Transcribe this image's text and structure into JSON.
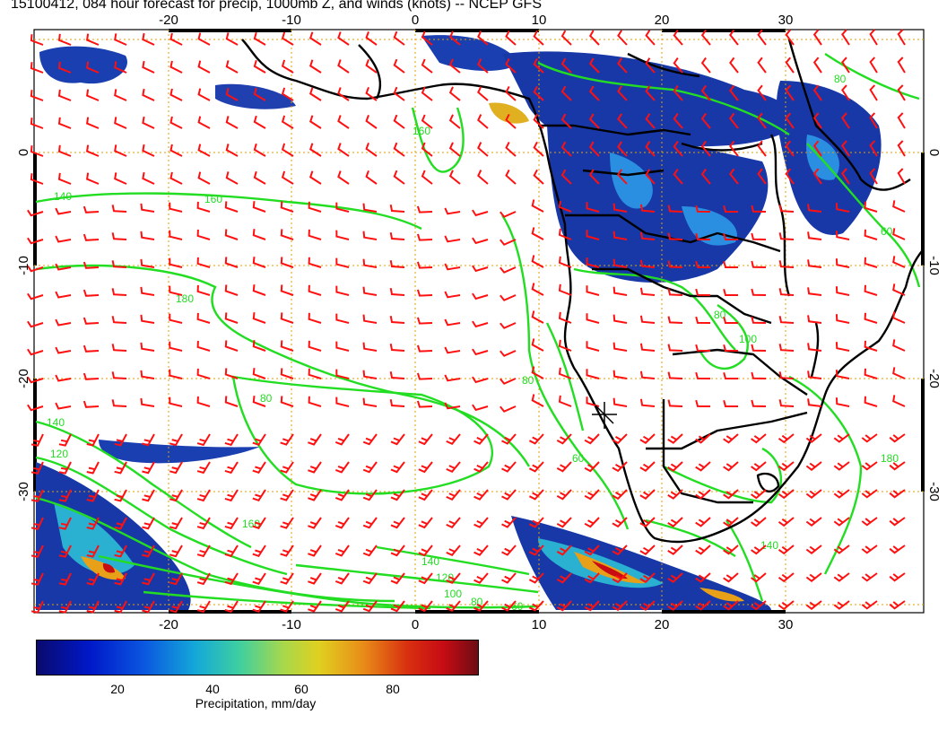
{
  "title": "15100412, 084 hour forecast for precip, 1000mb Z, and winds (knots) -- NCEP GFS",
  "map": {
    "lon_ticks": [
      "-20",
      "-10",
      "0",
      "10",
      "20",
      "30"
    ],
    "lat_ticks": [
      "0",
      "-10",
      "-20",
      "-30"
    ],
    "contour_labels": [
      "140",
      "160",
      "180",
      "80",
      "140",
      "120",
      "160",
      "140",
      "120",
      "100",
      "80",
      "60",
      "60",
      "80",
      "100",
      "80",
      "180",
      "140",
      "160",
      "80",
      "60"
    ],
    "colors": {
      "contour": "#22dd22",
      "wind_barb": "#ff1010",
      "coastline": "#000000",
      "grid": "#e0a000",
      "precip_low": "#1030a0",
      "precip_high": "#c80c14"
    }
  },
  "colorbar": {
    "title": "Precipitation, mm/day",
    "labels": [
      "20",
      "40",
      "60",
      "80"
    ]
  }
}
